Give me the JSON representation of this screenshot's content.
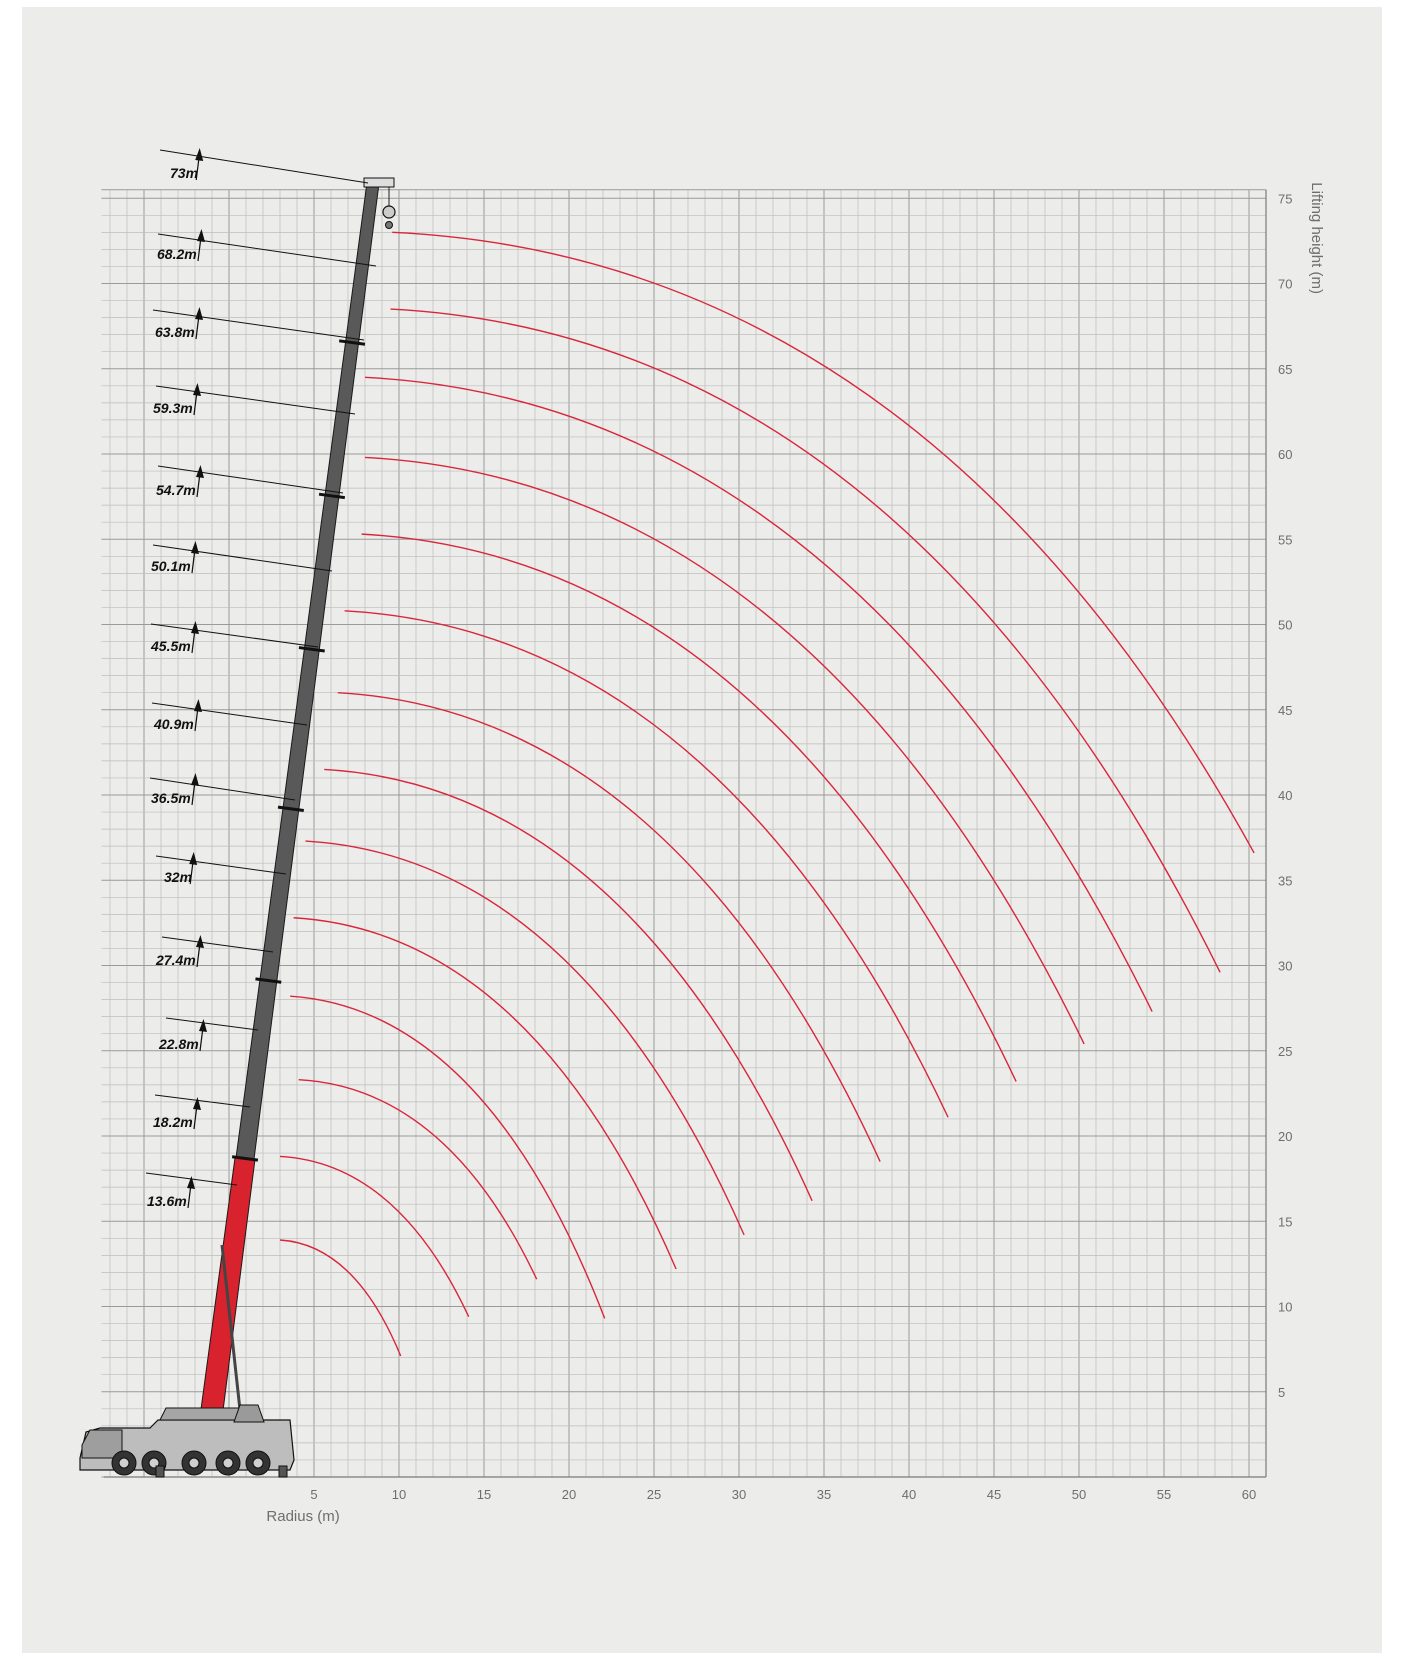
{
  "chart_data": {
    "type": "line",
    "title": "",
    "xlabel": "Radius (m)",
    "ylabel": "Lifting height (m)",
    "xlim": [
      -7.5,
      61
    ],
    "ylim": [
      0,
      75.5
    ],
    "x_ticks": [
      "5",
      "10",
      "15",
      "20",
      "25",
      "30",
      "35",
      "40",
      "45",
      "50",
      "55",
      "60"
    ],
    "y_ticks": [
      "5",
      "10",
      "15",
      "20",
      "25",
      "30",
      "35",
      "40",
      "45",
      "50",
      "55",
      "60",
      "65",
      "70",
      "75"
    ],
    "grid": true,
    "boom_lengths": [
      {
        "label": "73m",
        "value": 73
      },
      {
        "label": "68.2m",
        "value": 68.2
      },
      {
        "label": "63.8m",
        "value": 63.8
      },
      {
        "label": "59.3m",
        "value": 59.3
      },
      {
        "label": "54.7m",
        "value": 54.7
      },
      {
        "label": "50.1m",
        "value": 50.1
      },
      {
        "label": "45.5m",
        "value": 45.5
      },
      {
        "label": "40.9m",
        "value": 40.9
      },
      {
        "label": "36.5m",
        "value": 36.5
      },
      {
        "label": "32m",
        "value": 32
      },
      {
        "label": "27.4m",
        "value": 27.4
      },
      {
        "label": "22.8m",
        "value": 22.8
      },
      {
        "label": "18.2m",
        "value": 18.2
      },
      {
        "label": "13.6m",
        "value": 13.6
      }
    ],
    "series": [
      {
        "start": [
          9.6,
          73.0
        ],
        "end": [
          60.3,
          36.6
        ]
      },
      {
        "start": [
          9.5,
          68.5
        ],
        "end": [
          58.3,
          29.6
        ]
      },
      {
        "start": [
          8.0,
          64.5
        ],
        "end": [
          54.3,
          27.3
        ]
      },
      {
        "start": [
          8.0,
          59.8
        ],
        "end": [
          50.3,
          25.4
        ]
      },
      {
        "start": [
          7.8,
          55.3
        ],
        "end": [
          46.3,
          23.2
        ]
      },
      {
        "start": [
          6.8,
          50.8
        ],
        "end": [
          42.3,
          21.1
        ]
      },
      {
        "start": [
          6.4,
          46.0
        ],
        "end": [
          38.3,
          18.5
        ]
      },
      {
        "start": [
          5.6,
          41.5
        ],
        "end": [
          34.3,
          16.2
        ]
      },
      {
        "start": [
          4.5,
          37.3
        ],
        "end": [
          30.3,
          14.2
        ]
      },
      {
        "start": [
          3.8,
          32.8
        ],
        "end": [
          26.3,
          12.2
        ]
      },
      {
        "start": [
          3.6,
          28.2
        ],
        "end": [
          22.1,
          9.3
        ]
      },
      {
        "start": [
          4.1,
          23.3
        ],
        "end": [
          18.1,
          11.6
        ]
      },
      {
        "start": [
          3.0,
          18.8
        ],
        "end": [
          14.1,
          9.4
        ]
      },
      {
        "start": [
          3.0,
          13.9
        ],
        "end": [
          10.1,
          7.1
        ]
      }
    ],
    "colors": {
      "curve": "#d9263a",
      "boom": "#595959",
      "base_section": "#d8222e",
      "grid": "#b5b5b5"
    }
  }
}
